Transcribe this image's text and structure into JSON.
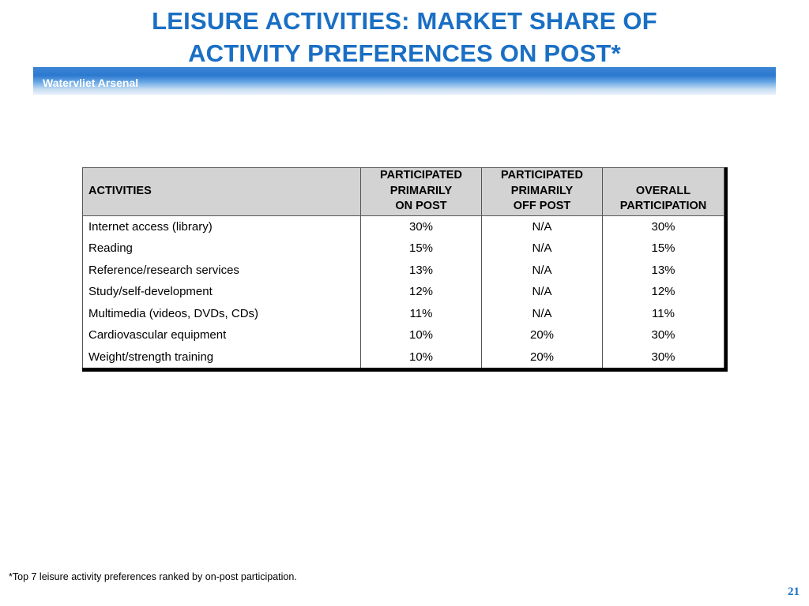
{
  "title": {
    "line1": "LEISURE ACTIVITIES: MARKET SHARE OF",
    "line2": "ACTIVITY PREFERENCES ON POST*"
  },
  "banner": {
    "text": "Watervliet Arsenal"
  },
  "table": {
    "headers": {
      "activities": "ACTIVITIES",
      "on_post": [
        "PARTICIPATED",
        "PRIMARILY",
        "ON POST"
      ],
      "off_post": [
        "PARTICIPATED",
        "PRIMARILY",
        "OFF POST"
      ],
      "overall": [
        "OVERALL",
        "PARTICIPATION"
      ]
    },
    "rows": [
      {
        "activity": "Internet access (library)",
        "on_post": "30%",
        "off_post": "N/A",
        "overall": "30%"
      },
      {
        "activity": "Reading",
        "on_post": "15%",
        "off_post": "N/A",
        "overall": "15%"
      },
      {
        "activity": "Reference/research services",
        "on_post": "13%",
        "off_post": "N/A",
        "overall": "13%"
      },
      {
        "activity": "Study/self-development",
        "on_post": "12%",
        "off_post": "N/A",
        "overall": "12%"
      },
      {
        "activity": "Multimedia (videos, DVDs, CDs)",
        "on_post": "11%",
        "off_post": "N/A",
        "overall": "11%"
      },
      {
        "activity": "Cardiovascular equipment",
        "on_post": "10%",
        "off_post": "20%",
        "overall": "30%"
      },
      {
        "activity": "Weight/strength training",
        "on_post": "10%",
        "off_post": "20%",
        "overall": "30%"
      }
    ]
  },
  "footnote": "*Top 7 leisure activity preferences ranked by on-post participation.",
  "page_number": "21",
  "colors": {
    "title": "#1a6fc4",
    "banner": "#2b78cf",
    "header_bg": "#d3d3d3"
  }
}
